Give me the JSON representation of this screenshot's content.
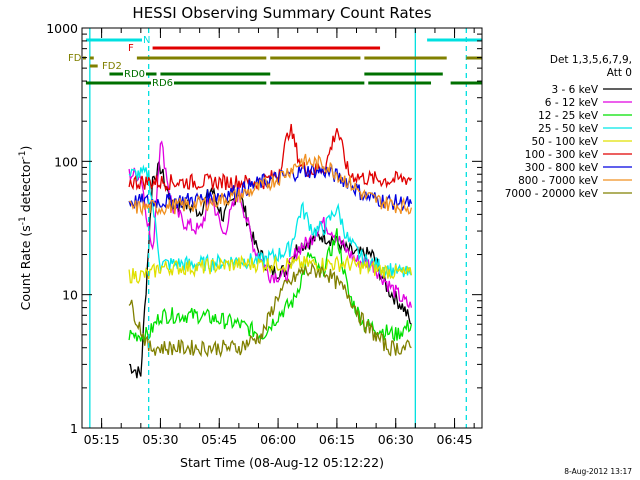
{
  "chart_data": {
    "type": "line",
    "title": "HESSI Observing Summary Count Rates",
    "xlabel": "Start Time (08-Aug-12 05:12:22)",
    "ylabel_main": "Count Rate (s",
    "ylabel_sup1": "-1",
    "ylabel_mid": " detector",
    "ylabel_sup2": "-1",
    "ylabel_end": ")",
    "y_scale": "log",
    "ylim": [
      1,
      1000
    ],
    "xlim": [
      "05:10",
      "06:52"
    ],
    "x_ticks": [
      "05:15",
      "05:30",
      "05:45",
      "06:00",
      "06:15",
      "06:30",
      "06:45"
    ],
    "y_ticks": [
      "1",
      "10",
      "100",
      "1000"
    ],
    "legend_position": "right",
    "legend_header": [
      "Det 1,3,5,6,7,9,",
      "Att 0"
    ],
    "series": [
      {
        "name": "3 - 6 keV",
        "color": "#000000",
        "x": [
          "05:22",
          "05:25",
          "05:28",
          "05:30",
          "05:33",
          "05:36",
          "05:40",
          "05:43",
          "05:46",
          "05:50",
          "05:54",
          "05:58",
          "06:02",
          "06:05",
          "06:08",
          "06:11",
          "06:14",
          "06:17",
          "06:20",
          "06:24",
          "06:28",
          "06:32",
          "06:34"
        ],
        "y": [
          3,
          2.5,
          75,
          90,
          45,
          48,
          42,
          62,
          38,
          60,
          24,
          15,
          15,
          23,
          25,
          28,
          26,
          22,
          20,
          20,
          11,
          8,
          6
        ]
      },
      {
        "name": "6 - 12 keV",
        "color": "#e000e0",
        "x": [
          "05:22",
          "05:25",
          "05:28",
          "05:30",
          "05:33",
          "05:36",
          "05:40",
          "05:43",
          "05:46",
          "05:50",
          "05:54",
          "05:58",
          "06:02",
          "06:05",
          "06:08",
          "06:11",
          "06:14",
          "06:17",
          "06:20",
          "06:24",
          "06:28",
          "06:32",
          "06:34"
        ],
        "y": [
          80,
          80,
          20,
          150,
          45,
          35,
          30,
          55,
          28,
          60,
          22,
          14,
          14,
          22,
          25,
          35,
          30,
          22,
          18,
          17,
          12,
          9,
          8
        ]
      },
      {
        "name": "12 - 25 keV",
        "color": "#00e000",
        "x": [
          "05:22",
          "05:27",
          "05:30",
          "05:40",
          "05:50",
          "05:56",
          "06:00",
          "06:04",
          "06:08",
          "06:11",
          "06:15",
          "06:18",
          "06:22",
          "06:30",
          "06:34"
        ],
        "y": [
          5,
          5,
          7,
          7,
          6,
          5,
          7,
          9,
          20,
          14,
          28,
          10,
          6,
          5,
          6
        ]
      },
      {
        "name": "25 - 50 keV",
        "color": "#00e8e8",
        "x": [
          "05:22",
          "05:27",
          "05:30",
          "05:40",
          "05:50",
          "05:56",
          "06:00",
          "06:03",
          "06:06",
          "06:09",
          "06:12",
          "06:15",
          "06:18",
          "06:22",
          "06:30",
          "06:34"
        ],
        "y": [
          80,
          80,
          17,
          17,
          18,
          18,
          20,
          22,
          45,
          30,
          32,
          45,
          25,
          18,
          15,
          14
        ]
      },
      {
        "name": "50 - 100 keV",
        "color": "#e0e000",
        "x": [
          "05:22",
          "05:27",
          "05:30",
          "05:40",
          "05:50",
          "05:56",
          "06:00",
          "06:06",
          "06:12",
          "06:18",
          "06:22",
          "06:28",
          "06:34"
        ],
        "y": [
          14,
          14,
          16,
          16,
          17,
          17,
          17,
          17,
          17,
          17,
          16,
          15,
          14
        ]
      },
      {
        "name": "100 - 300 keV",
        "color": "#e00000",
        "x": [
          "05:22",
          "05:27",
          "05:30",
          "05:40",
          "05:50",
          "05:56",
          "06:00",
          "06:03",
          "06:06",
          "06:09",
          "06:12",
          "06:15",
          "06:18",
          "06:22",
          "06:28",
          "06:34"
        ],
        "y": [
          70,
          70,
          70,
          70,
          70,
          70,
          80,
          180,
          90,
          85,
          90,
          180,
          80,
          75,
          72,
          75
        ]
      },
      {
        "name": "300 - 800 keV",
        "color": "#0000e0",
        "x": [
          "05:22",
          "05:30",
          "05:40",
          "05:50",
          "05:56",
          "06:00",
          "06:06",
          "06:12",
          "06:18",
          "06:22",
          "06:28",
          "06:34"
        ],
        "y": [
          50,
          50,
          52,
          60,
          70,
          75,
          85,
          85,
          70,
          55,
          50,
          48
        ]
      },
      {
        "name": "800 - 7000 keV",
        "color": "#f09020",
        "x": [
          "05:22",
          "05:30",
          "05:40",
          "05:50",
          "05:56",
          "06:00",
          "06:06",
          "06:12",
          "06:18",
          "06:22",
          "06:28",
          "06:34"
        ],
        "y": [
          45,
          45,
          48,
          55,
          65,
          75,
          100,
          95,
          70,
          55,
          48,
          45
        ]
      },
      {
        "name": "7000 - 20000 keV",
        "color": "#808000",
        "x": [
          "05:22",
          "05:27",
          "05:30",
          "05:40",
          "05:50",
          "05:56",
          "06:00",
          "06:06",
          "06:12",
          "06:18",
          "06:22",
          "06:28",
          "06:34"
        ],
        "y": [
          9,
          4,
          4,
          4,
          4,
          5,
          10,
          15,
          15,
          10,
          6,
          4,
          4
        ]
      }
    ],
    "flag_segments": [
      {
        "label": "N",
        "color": "#00e0e0",
        "segments": [
          [
            "05:11",
            "05:27"
          ],
          [
            "06:38",
            "06:52"
          ]
        ]
      },
      {
        "label": "F",
        "color": "#e00000",
        "segments": [
          [
            "05:28",
            "06:26"
          ]
        ]
      },
      {
        "label": "FD",
        "color": "#808000",
        "segments": [
          [
            "05:10",
            "05:11"
          ],
          [
            "05:12",
            "05:13"
          ],
          [
            "05:24",
            "05:57"
          ],
          [
            "05:58",
            "06:21"
          ],
          [
            "06:22",
            "06:43"
          ],
          [
            "06:48",
            "06:52"
          ]
        ]
      },
      {
        "label": "FD2",
        "color": "#808000",
        "segments": [
          [
            "05:12",
            "05:14"
          ]
        ]
      },
      {
        "label": "RD0",
        "color": "#007000",
        "segments": [
          [
            "05:17",
            "05:29"
          ],
          [
            "05:30",
            "05:58"
          ],
          [
            "06:22",
            "06:42"
          ]
        ]
      },
      {
        "label": "RD6",
        "color": "#007000",
        "segments": [
          [
            "05:11",
            "05:31"
          ],
          [
            "05:32",
            "05:57"
          ],
          [
            "05:58",
            "06:22"
          ],
          [
            "06:23",
            "06:39"
          ],
          [
            "06:44",
            "06:52"
          ]
        ]
      }
    ],
    "vertical_markers": [
      {
        "x": "05:12",
        "color": "#00e0e0",
        "style": "solid"
      },
      {
        "x": "05:27",
        "color": "#00e0e0",
        "style": "dashed"
      },
      {
        "x": "06:35",
        "color": "#00e0e0",
        "style": "solid"
      },
      {
        "x": "06:48",
        "color": "#00e0e0",
        "style": "dashed"
      }
    ]
  },
  "footer": {
    "timestamp": "8-Aug-2012 13:17"
  }
}
